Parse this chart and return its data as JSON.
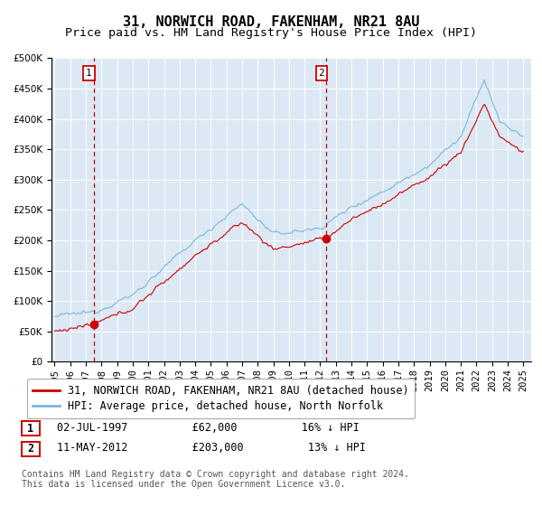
{
  "title": "31, NORWICH ROAD, FAKENHAM, NR21 8AU",
  "subtitle": "Price paid vs. HM Land Registry's House Price Index (HPI)",
  "background_color": "#ffffff",
  "plot_bg_color": "#dce9f5",
  "hpi_color": "#7ab8d9",
  "price_color": "#cc0000",
  "marker1_x": 1997.5,
  "marker1_y": 62000,
  "marker2_x": 2012.37,
  "marker2_y": 203000,
  "annotation1_label": "1",
  "annotation2_label": "2",
  "vline_color": "#cc0000",
  "ylim": [
    0,
    500000
  ],
  "xlim": [
    1994.8,
    2025.5
  ],
  "yticks": [
    0,
    50000,
    100000,
    150000,
    200000,
    250000,
    300000,
    350000,
    400000,
    450000,
    500000
  ],
  "xticks": [
    1995,
    1996,
    1997,
    1998,
    1999,
    2000,
    2001,
    2002,
    2003,
    2004,
    2005,
    2006,
    2007,
    2008,
    2009,
    2010,
    2011,
    2012,
    2013,
    2014,
    2015,
    2016,
    2017,
    2018,
    2019,
    2020,
    2021,
    2022,
    2023,
    2024,
    2025
  ],
  "legend_label_price": "31, NORWICH ROAD, FAKENHAM, NR21 8AU (detached house)",
  "legend_label_hpi": "HPI: Average price, detached house, North Norfolk",
  "table_row1": [
    "1",
    "02-JUL-1997",
    "£62,000",
    "16% ↓ HPI"
  ],
  "table_row2": [
    "2",
    "11-MAY-2012",
    "£203,000",
    "13% ↓ HPI"
  ],
  "footer": "Contains HM Land Registry data © Crown copyright and database right 2024.\nThis data is licensed under the Open Government Licence v3.0.",
  "title_fontsize": 11,
  "subtitle_fontsize": 9.5,
  "tick_fontsize": 7.5,
  "legend_fontsize": 8.5,
  "table_fontsize": 8.5,
  "footer_fontsize": 7
}
